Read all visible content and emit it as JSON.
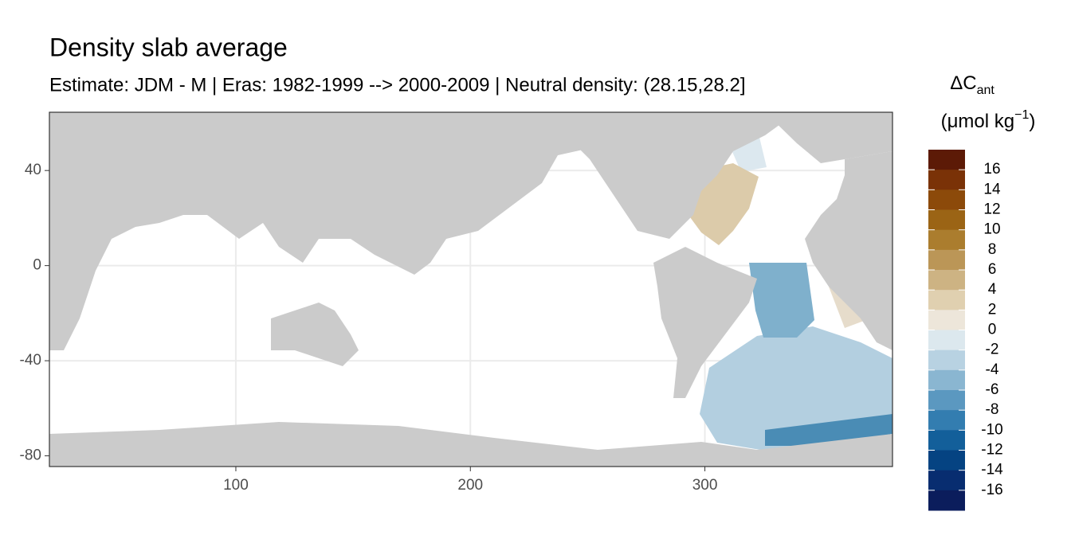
{
  "chart_data": {
    "type": "map",
    "title": "Density slab average",
    "subtitle": "Estimate: JDM - M | Eras: 1982-1999 --> 2000-2009 | Neutral density: (28.15,28.2]",
    "xlim": [
      20.5,
      380
    ],
    "ylim": [
      -84.5,
      64.5
    ],
    "xticks": [
      100,
      200,
      300
    ],
    "yticks": [
      40,
      0,
      -40,
      -80
    ],
    "grid": true,
    "legend": {
      "title": [
        "ΔC",
        "ant"
      ],
      "unit": [
        "(μmol kg",
        "−1",
        ")"
      ],
      "breaks": [
        16,
        14,
        12,
        10,
        8,
        6,
        4,
        2,
        0,
        -2,
        -4,
        -6,
        -8,
        -10,
        -12,
        -14,
        -16
      ],
      "colors": [
        "#5c1a06",
        "#7a3207",
        "#8c4a0a",
        "#9b6415",
        "#ab7d2e",
        "#bb9657",
        "#cdb383",
        "#e0d0b0",
        "#ede6da",
        "#dce8ee",
        "#b8d2e2",
        "#8ab6d1",
        "#5b98c0",
        "#337db0",
        "#135f9a",
        "#054382",
        "#082d70",
        "#0b1d5c"
      ]
    }
  }
}
